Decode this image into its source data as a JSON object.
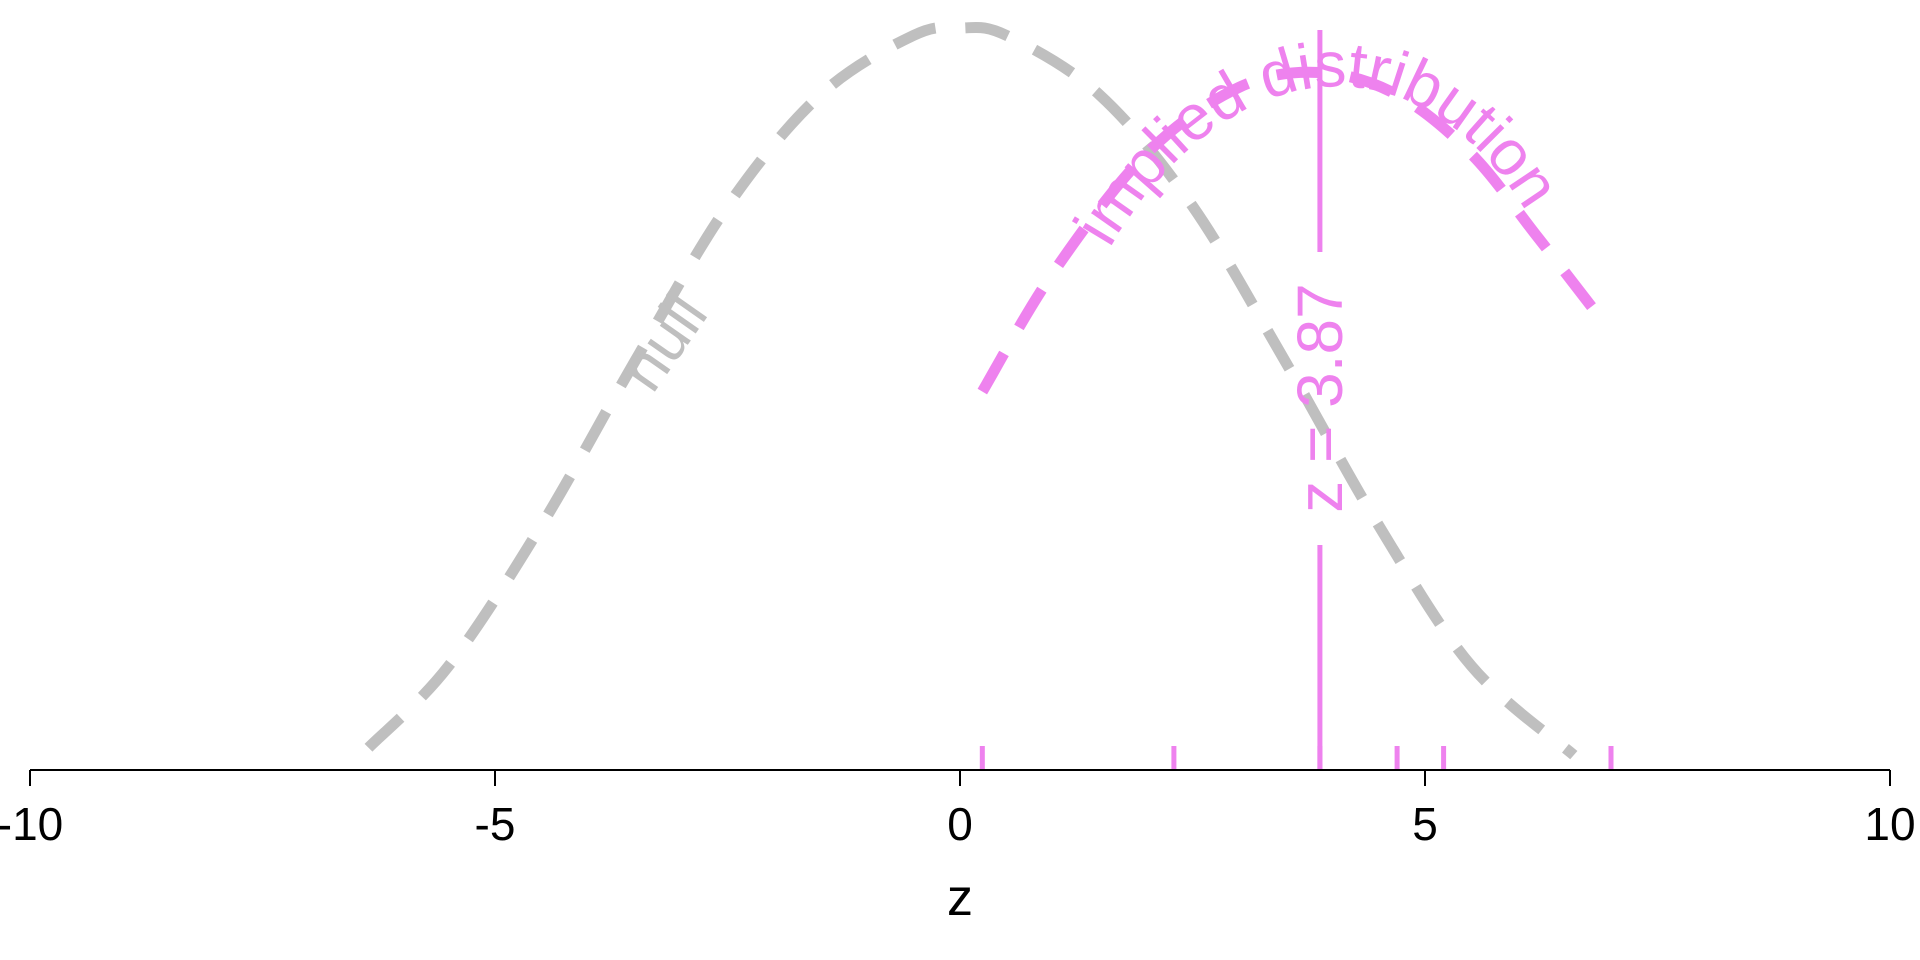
{
  "chart_data": {
    "type": "line",
    "title": "",
    "xlabel": "z",
    "ylabel": "",
    "xlim": [
      -10,
      10
    ],
    "x_ticks": [
      -10,
      -5,
      0,
      5,
      10
    ],
    "x_tick_labels": [
      "-10",
      "-5",
      "0",
      "5",
      "10"
    ],
    "grid": false,
    "y_axis_shown": false,
    "series": [
      {
        "name": "null",
        "color": "#bfbfbf",
        "style": "dashed",
        "x": [
          -6.36,
          -5.5,
          -4.5,
          -3.5,
          -2.5,
          -1.5,
          -0.5,
          0,
          0.5,
          1.5,
          2.5,
          3.5,
          4.5,
          5.5,
          6.6
        ],
        "y": [
          0.03,
          0.14,
          0.33,
          0.55,
          0.76,
          0.91,
          0.99,
          1.0,
          0.99,
          0.91,
          0.76,
          0.55,
          0.33,
          0.14,
          0.02
        ]
      },
      {
        "name": "implied distribution",
        "color": "#ee82ee",
        "style": "dashed",
        "x": [
          0.24,
          1.0,
          2.0,
          3.0,
          3.87,
          4.7,
          5.5,
          6.2,
          6.88
        ],
        "y": [
          0.51,
          0.67,
          0.83,
          0.92,
          0.94,
          0.91,
          0.83,
          0.72,
          0.61
        ]
      }
    ],
    "vertical_line": {
      "x": 3.87,
      "label": "z = 3.87",
      "color": "#ee82ee"
    },
    "rug": {
      "x": [
        0.24,
        2.3,
        3.87,
        4.7,
        5.2,
        7.0
      ],
      "color": "#ee82ee"
    }
  }
}
